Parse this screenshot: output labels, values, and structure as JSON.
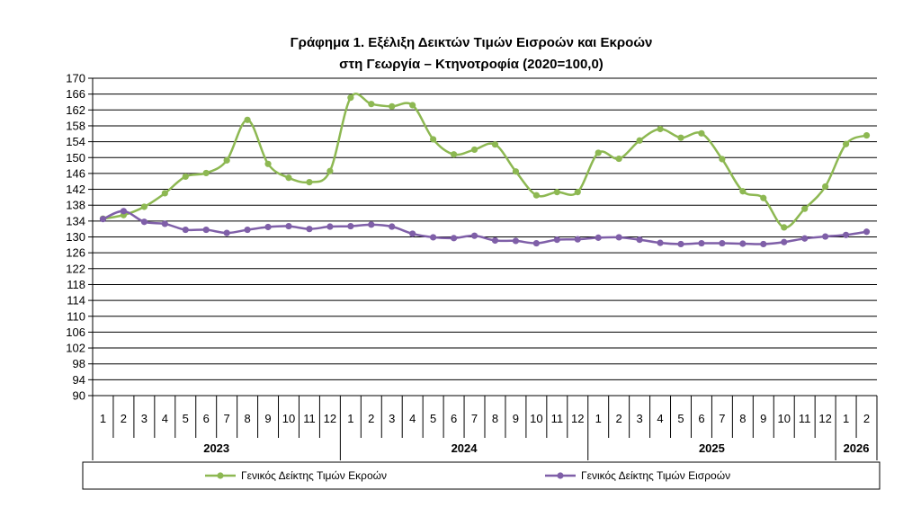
{
  "chart_data": {
    "type": "line",
    "title": "Γράφημα 1. Εξέλιξη Δεικτών Τιμών Εισροών και Εκροών",
    "subtitle": "στη Γεωργία – Κτηνοτροφία (2020=100,0)",
    "xlabel": "",
    "ylabel": "",
    "ylim": [
      90,
      170
    ],
    "ytick_step": 4,
    "grid": true,
    "legend_placement": "bottom",
    "categories": [
      "1",
      "2",
      "3",
      "4",
      "5",
      "6",
      "7",
      "8",
      "9",
      "10",
      "11",
      "12",
      "1",
      "2",
      "3",
      "4",
      "5",
      "6",
      "7",
      "8",
      "9",
      "10",
      "11",
      "12",
      "1",
      "2",
      "3",
      "4",
      "5",
      "6",
      "7",
      "8",
      "9",
      "10",
      "11",
      "12",
      "1",
      "2"
    ],
    "year_groups": [
      {
        "label": "2023",
        "count": 12
      },
      {
        "label": "2024",
        "count": 12
      },
      {
        "label": "2025",
        "count": 12
      },
      {
        "label": "2026",
        "count": 2
      }
    ],
    "series": [
      {
        "name": "Γενικός Δείκτης Τιμών Εκροών",
        "color": "#8DB852",
        "values": [
          134.6,
          135.5,
          137.6,
          141.0,
          145.2,
          146.1,
          149.3,
          159.5,
          148.4,
          144.9,
          143.8,
          146.6,
          165.1,
          163.5,
          162.9,
          163.2,
          154.6,
          150.8,
          152.0,
          153.3,
          146.5,
          140.5,
          141.3,
          141.3,
          151.2,
          149.7,
          154.3,
          157.2,
          155.0,
          156.1,
          149.6,
          141.5,
          139.8,
          132.4,
          137.1,
          142.7,
          153.4,
          155.6
        ]
      },
      {
        "name": "Γενικός Δείκτης Τιμών Εισροών",
        "color": "#7F5FA8",
        "values": [
          134.5,
          136.5,
          133.8,
          133.3,
          131.8,
          131.8,
          131.0,
          131.8,
          132.5,
          132.7,
          132.0,
          132.6,
          132.7,
          133.1,
          132.6,
          130.8,
          129.9,
          129.7,
          130.3,
          129.1,
          129.0,
          128.4,
          129.3,
          129.4,
          129.8,
          129.9,
          129.3,
          128.5,
          128.2,
          128.4,
          128.4,
          128.3,
          128.2,
          128.7,
          129.6,
          130.1,
          130.5,
          131.3
        ]
      }
    ]
  }
}
